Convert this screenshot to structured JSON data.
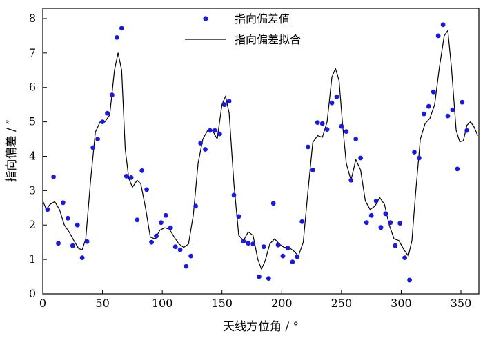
{
  "chart_data": {
    "type": "scatter+line",
    "xlabel": "天线方位角 / °",
    "ylabel": "指向偏差 / ″",
    "xlim": [
      0,
      365
    ],
    "ylim": [
      0,
      8.3
    ],
    "xticks": [
      0,
      50,
      100,
      150,
      200,
      250,
      300,
      350
    ],
    "yticks": [
      0,
      1,
      2,
      3,
      4,
      5,
      6,
      7,
      8
    ],
    "grid": false,
    "legend_position": "top-center",
    "series": [
      {
        "name": "指向偏差值",
        "kind": "scatter",
        "color": "#1a1adf",
        "points": [
          [
            4,
            2.45
          ],
          [
            9,
            3.4
          ],
          [
            13,
            1.47
          ],
          [
            17,
            2.65
          ],
          [
            21,
            2.2
          ],
          [
            25,
            1.4
          ],
          [
            29,
            2.0
          ],
          [
            33,
            1.05
          ],
          [
            37,
            1.52
          ],
          [
            42,
            4.25
          ],
          [
            46,
            4.5
          ],
          [
            50,
            5.0
          ],
          [
            54,
            5.25
          ],
          [
            58,
            5.78
          ],
          [
            62,
            7.45
          ],
          [
            66,
            7.72
          ],
          [
            70,
            3.42
          ],
          [
            74,
            3.38
          ],
          [
            79,
            2.15
          ],
          [
            83,
            3.58
          ],
          [
            87,
            3.03
          ],
          [
            91,
            1.5
          ],
          [
            95,
            1.68
          ],
          [
            99,
            2.07
          ],
          [
            103,
            2.28
          ],
          [
            107,
            1.92
          ],
          [
            111,
            1.37
          ],
          [
            115,
            1.28
          ],
          [
            120,
            0.8
          ],
          [
            124,
            1.1
          ],
          [
            128,
            2.55
          ],
          [
            132,
            4.38
          ],
          [
            136,
            4.2
          ],
          [
            140,
            4.75
          ],
          [
            144,
            4.75
          ],
          [
            148,
            4.65
          ],
          [
            152,
            5.5
          ],
          [
            156,
            5.6
          ],
          [
            160,
            2.87
          ],
          [
            164,
            2.25
          ],
          [
            168,
            1.53
          ],
          [
            172,
            1.47
          ],
          [
            176,
            1.45
          ],
          [
            181,
            0.5
          ],
          [
            185,
            1.37
          ],
          [
            189,
            0.45
          ],
          [
            193,
            2.63
          ],
          [
            197,
            1.42
          ],
          [
            201,
            1.1
          ],
          [
            205,
            1.33
          ],
          [
            209,
            0.93
          ],
          [
            213,
            1.08
          ],
          [
            217,
            2.1
          ],
          [
            222,
            4.27
          ],
          [
            226,
            3.6
          ],
          [
            230,
            4.98
          ],
          [
            234,
            4.95
          ],
          [
            238,
            4.78
          ],
          [
            242,
            5.55
          ],
          [
            246,
            5.73
          ],
          [
            250,
            4.87
          ],
          [
            254,
            4.72
          ],
          [
            258,
            3.3
          ],
          [
            262,
            4.5
          ],
          [
            266,
            3.95
          ],
          [
            271,
            2.07
          ],
          [
            275,
            2.28
          ],
          [
            279,
            2.7
          ],
          [
            283,
            1.93
          ],
          [
            287,
            2.33
          ],
          [
            291,
            2.07
          ],
          [
            295,
            1.4
          ],
          [
            299,
            2.05
          ],
          [
            303,
            1.05
          ],
          [
            307,
            0.4
          ],
          [
            311,
            4.12
          ],
          [
            315,
            3.95
          ],
          [
            319,
            5.23
          ],
          [
            323,
            5.45
          ],
          [
            327,
            5.87
          ],
          [
            331,
            7.5
          ],
          [
            335,
            7.82
          ],
          [
            339,
            5.17
          ],
          [
            343,
            5.35
          ],
          [
            347,
            3.63
          ],
          [
            351,
            5.57
          ],
          [
            355,
            4.75
          ]
        ]
      },
      {
        "name": "指向偏差拟合",
        "kind": "line",
        "color": "#000000",
        "points": [
          [
            0,
            2.7
          ],
          [
            3,
            2.45
          ],
          [
            6,
            2.6
          ],
          [
            10,
            2.68
          ],
          [
            14,
            2.45
          ],
          [
            18,
            2.0
          ],
          [
            22,
            1.8
          ],
          [
            26,
            1.55
          ],
          [
            30,
            1.32
          ],
          [
            33,
            1.28
          ],
          [
            36,
            1.6
          ],
          [
            40,
            3.3
          ],
          [
            44,
            4.7
          ],
          [
            48,
            5.0
          ],
          [
            52,
            5.0
          ],
          [
            56,
            5.2
          ],
          [
            60,
            6.5
          ],
          [
            63,
            7.0
          ],
          [
            66,
            6.5
          ],
          [
            69,
            4.2
          ],
          [
            72,
            3.35
          ],
          [
            75,
            3.1
          ],
          [
            79,
            3.3
          ],
          [
            82,
            3.2
          ],
          [
            86,
            2.5
          ],
          [
            90,
            1.65
          ],
          [
            94,
            1.6
          ],
          [
            98,
            1.85
          ],
          [
            102,
            1.92
          ],
          [
            106,
            1.88
          ],
          [
            110,
            1.65
          ],
          [
            114,
            1.45
          ],
          [
            118,
            1.35
          ],
          [
            122,
            1.45
          ],
          [
            126,
            2.3
          ],
          [
            130,
            3.8
          ],
          [
            134,
            4.5
          ],
          [
            138,
            4.75
          ],
          [
            142,
            4.75
          ],
          [
            146,
            4.5
          ],
          [
            150,
            5.5
          ],
          [
            153,
            5.75
          ],
          [
            156,
            5.25
          ],
          [
            160,
            3.2
          ],
          [
            164,
            1.7
          ],
          [
            168,
            1.55
          ],
          [
            172,
            1.8
          ],
          [
            176,
            1.7
          ],
          [
            180,
            1.0
          ],
          [
            183,
            0.72
          ],
          [
            186,
            0.95
          ],
          [
            190,
            1.45
          ],
          [
            194,
            1.6
          ],
          [
            198,
            1.45
          ],
          [
            202,
            1.35
          ],
          [
            206,
            1.35
          ],
          [
            210,
            1.25
          ],
          [
            214,
            1.1
          ],
          [
            218,
            1.5
          ],
          [
            222,
            3.0
          ],
          [
            226,
            4.4
          ],
          [
            230,
            4.6
          ],
          [
            234,
            4.55
          ],
          [
            238,
            5.0
          ],
          [
            242,
            6.3
          ],
          [
            245,
            6.55
          ],
          [
            248,
            6.2
          ],
          [
            251,
            4.9
          ],
          [
            254,
            3.8
          ],
          [
            258,
            3.3
          ],
          [
            262,
            3.9
          ],
          [
            266,
            3.6
          ],
          [
            270,
            2.7
          ],
          [
            274,
            2.45
          ],
          [
            278,
            2.55
          ],
          [
            282,
            2.8
          ],
          [
            286,
            2.6
          ],
          [
            290,
            2.0
          ],
          [
            294,
            1.6
          ],
          [
            298,
            1.55
          ],
          [
            302,
            1.3
          ],
          [
            306,
            1.1
          ],
          [
            309,
            1.55
          ],
          [
            312,
            2.9
          ],
          [
            316,
            4.5
          ],
          [
            320,
            4.95
          ],
          [
            324,
            5.1
          ],
          [
            328,
            5.5
          ],
          [
            332,
            6.6
          ],
          [
            336,
            7.5
          ],
          [
            339,
            7.65
          ],
          [
            342,
            6.6
          ],
          [
            346,
            4.75
          ],
          [
            349,
            4.42
          ],
          [
            352,
            4.45
          ],
          [
            355,
            4.9
          ],
          [
            358,
            5.0
          ],
          [
            361,
            4.85
          ],
          [
            364,
            4.6
          ]
        ]
      }
    ]
  }
}
